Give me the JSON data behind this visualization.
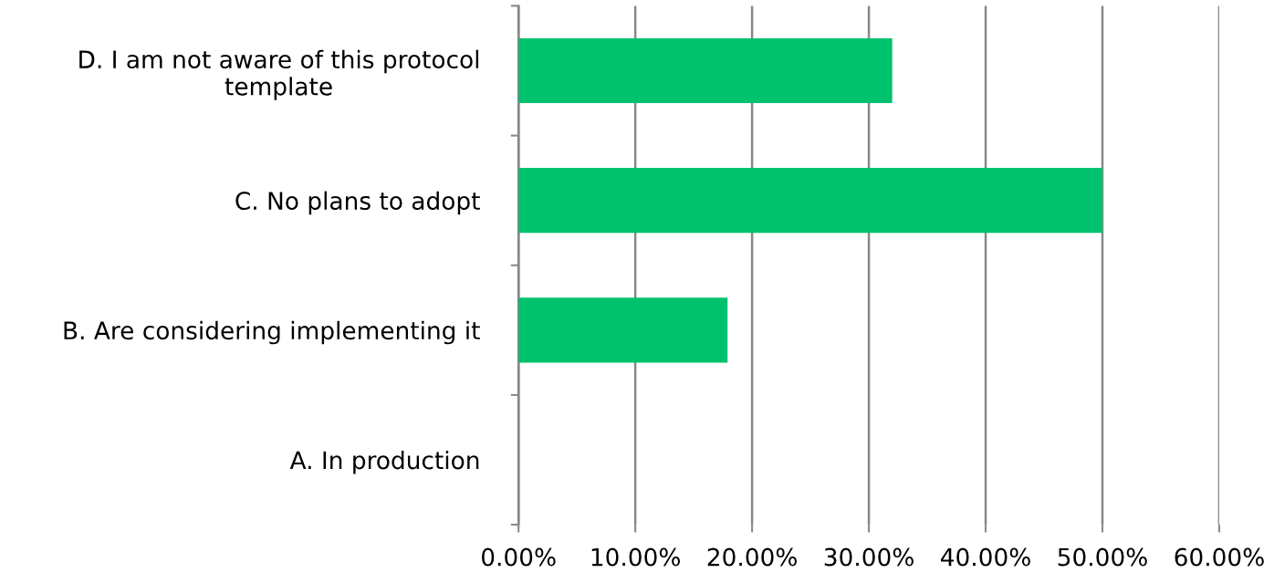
{
  "chart_data": {
    "type": "bar",
    "orientation": "horizontal",
    "categories": [
      "D. I am not aware of this protocol\ntemplate",
      "C. No plans to adopt",
      "B. Are considering implementing it",
      "A. In production"
    ],
    "values": [
      32.0,
      50.0,
      17.9,
      0
    ],
    "color": "#00c16e",
    "xlim": [
      0,
      60
    ],
    "xticks": [
      {
        "value": 0,
        "label": "0.00%"
      },
      {
        "value": 10,
        "label": "10.00%"
      },
      {
        "value": 20,
        "label": "20.00%"
      },
      {
        "value": 30,
        "label": "30.00%"
      },
      {
        "value": 40,
        "label": "40.00%"
      },
      {
        "value": 50,
        "label": "50.00%"
      },
      {
        "value": 60,
        "label": "60.00%"
      }
    ],
    "grid": "x",
    "legend": false
  }
}
